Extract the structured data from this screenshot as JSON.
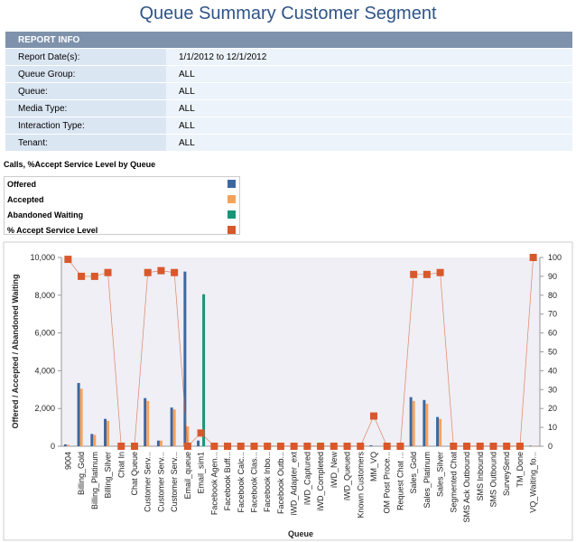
{
  "title": "Queue Summary Customer Segment",
  "report_info": {
    "header": "REPORT INFO",
    "rows": [
      [
        "Report Date(s):",
        "1/1/2012  to  12/1/2012"
      ],
      [
        "Queue Group:",
        "ALL"
      ],
      [
        "Queue:",
        "ALL"
      ],
      [
        "Media Type:",
        "ALL"
      ],
      [
        "Interaction Type:",
        "ALL"
      ],
      [
        "Tenant:",
        "ALL"
      ]
    ]
  },
  "chart_data": {
    "type": "bar",
    "title": "Calls, %Accept Service Level by Queue",
    "y_label": "Offered / Accepted / Abandoned Waiting",
    "x_label": "Queue",
    "categories": [
      "9004",
      "Billing_Gold",
      "Billing_Platinum",
      "Billing_Silver",
      "Chat In",
      "Chat Queue",
      "Customer Serv...",
      "Customer Serv...",
      "Customer Serv...",
      "Email_queue",
      "Email_sim1",
      "Facebook Agen...",
      "Facebook Buff...",
      "Facebook Calc...",
      "Facebook Clas...",
      "Facebook Inbo...",
      "Facebook Outb...",
      "iWD_Adapter_ext",
      "iWD_Captured",
      "iWD_Completed",
      "iWD_New",
      "iWD_Queued",
      "Known Customers",
      "MM_VQ",
      "OM Post Proce...",
      "Request Chat ...",
      "Sales_Gold",
      "Sales_Platinum",
      "Sales_Silver",
      "Segmented Chat",
      "SMS Ack Outbound",
      "SMS Inbound",
      "SMS Outbound",
      "SurveySend",
      "TM_Done",
      "VQ_Waiting_fo..."
    ],
    "series": [
      {
        "name": "Offered",
        "color": "#3d679f",
        "values": [
          100,
          3350,
          650,
          1450,
          0,
          0,
          2550,
          300,
          2050,
          9250,
          300,
          0,
          0,
          0,
          0,
          0,
          0,
          0,
          0,
          0,
          0,
          0,
          0,
          50,
          0,
          0,
          2600,
          2450,
          1550,
          0,
          0,
          0,
          0,
          0,
          0,
          30
        ]
      },
      {
        "name": "Accepted",
        "color": "#f5a35c",
        "values": [
          80,
          3050,
          600,
          1350,
          0,
          0,
          2400,
          300,
          1950,
          1050,
          0,
          0,
          0,
          0,
          0,
          0,
          0,
          0,
          0,
          0,
          0,
          0,
          0,
          10,
          0,
          0,
          2400,
          2250,
          1450,
          0,
          0,
          0,
          0,
          0,
          0,
          30
        ]
      },
      {
        "name": "Abandoned Waiting",
        "color": "#179679",
        "values": [
          0,
          0,
          0,
          0,
          0,
          0,
          0,
          0,
          0,
          0,
          8050,
          0,
          0,
          0,
          0,
          0,
          0,
          0,
          0,
          0,
          0,
          0,
          0,
          0,
          0,
          0,
          0,
          0,
          0,
          0,
          0,
          0,
          0,
          0,
          0,
          0
        ]
      },
      {
        "name": "% Accept Service Level",
        "color": "#d9582b",
        "axis": "y2",
        "type": "line",
        "values": [
          99,
          90,
          90,
          92,
          0,
          0,
          92,
          93,
          92,
          0,
          7,
          0,
          0,
          0,
          0,
          0,
          0,
          0,
          0,
          0,
          0,
          0,
          0,
          16,
          0,
          0,
          91,
          91,
          92,
          0,
          0,
          0,
          0,
          0,
          0,
          100
        ]
      }
    ],
    "ylim": [
      0,
      10000
    ],
    "yticks": [
      0,
      {
        "value": 2000,
        "label": "2,000"
      },
      {
        "value": 4000,
        "label": "4,000"
      },
      {
        "value": 6000,
        "label": "6,000"
      },
      {
        "value": 8000,
        "label": "8,000"
      },
      {
        "value": 10000,
        "label": "10,000"
      }
    ],
    "y2lim": [
      0,
      100
    ],
    "y2ticks": [
      0,
      10,
      20,
      30,
      40,
      50,
      60,
      70,
      80,
      90,
      100
    ],
    "grid": false
  }
}
